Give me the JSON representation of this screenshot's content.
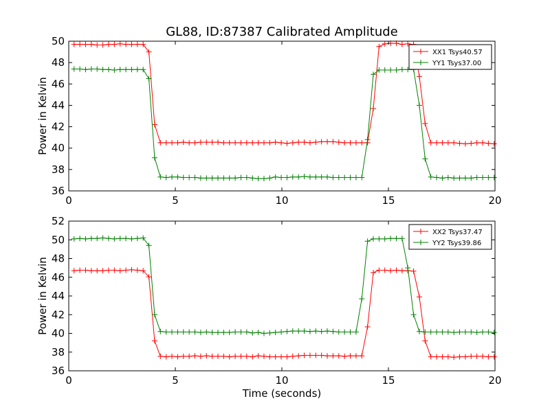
{
  "figure": {
    "title": "GL88, ID:87387 Calibrated Amplitude"
  },
  "chart_data": [
    {
      "type": "line",
      "title": "GL88, ID:87387 Calibrated Amplitude",
      "xlabel": "",
      "ylabel": "Power in Kelvin",
      "xlim": [
        0,
        20
      ],
      "ylim": [
        36,
        50
      ],
      "xticks": [
        0,
        5,
        10,
        15,
        20
      ],
      "yticks": [
        36,
        38,
        40,
        42,
        44,
        46,
        48,
        50
      ],
      "grid": false,
      "legend_position": "top-right",
      "x": [
        0.25,
        0.52,
        0.79,
        1.06,
        1.33,
        1.6,
        1.87,
        2.14,
        2.41,
        2.68,
        2.95,
        3.22,
        3.49,
        3.76,
        4.03,
        4.3,
        4.57,
        4.84,
        5.11,
        5.38,
        5.65,
        5.92,
        6.19,
        6.46,
        6.73,
        7.0,
        7.27,
        7.54,
        7.81,
        8.08,
        8.35,
        8.62,
        8.89,
        9.16,
        9.43,
        9.7,
        9.97,
        10.24,
        10.51,
        10.78,
        11.05,
        11.32,
        11.59,
        11.86,
        12.13,
        12.4,
        12.67,
        12.94,
        13.21,
        13.48,
        13.75,
        14.02,
        14.29,
        14.56,
        14.83,
        15.1,
        15.37,
        15.64,
        15.91,
        16.18,
        16.45,
        16.72,
        16.99,
        17.26,
        17.53,
        17.8,
        18.07,
        18.34,
        18.61,
        18.88,
        19.15,
        19.42,
        19.69,
        19.96
      ],
      "series": [
        {
          "name": "XX1 Tsys40.57",
          "color": "#ff0000",
          "values": [
            49.7,
            49.7,
            49.7,
            49.7,
            49.65,
            49.65,
            49.7,
            49.7,
            49.75,
            49.7,
            49.7,
            49.7,
            49.7,
            49.0,
            42.2,
            40.5,
            40.5,
            40.5,
            40.5,
            40.55,
            40.5,
            40.5,
            40.55,
            40.55,
            40.55,
            40.55,
            40.5,
            40.5,
            40.5,
            40.5,
            40.5,
            40.5,
            40.5,
            40.5,
            40.5,
            40.55,
            40.5,
            40.45,
            40.5,
            40.55,
            40.55,
            40.5,
            40.55,
            40.6,
            40.6,
            40.6,
            40.55,
            40.5,
            40.5,
            40.5,
            40.5,
            40.5,
            43.7,
            49.5,
            49.75,
            49.8,
            49.8,
            49.7,
            49.75,
            49.7,
            46.7,
            42.3,
            40.5,
            40.5,
            40.5,
            40.5,
            40.5,
            40.45,
            40.4,
            40.45,
            40.5,
            40.5,
            40.45,
            40.4
          ]
        },
        {
          "name": "YY1 Tsys37.00",
          "color": "#008000",
          "values": [
            47.4,
            47.4,
            47.35,
            47.4,
            47.4,
            47.35,
            47.35,
            47.3,
            47.35,
            47.35,
            47.35,
            47.35,
            47.35,
            46.5,
            39.1,
            37.3,
            37.25,
            37.3,
            37.3,
            37.25,
            37.25,
            37.25,
            37.2,
            37.2,
            37.2,
            37.2,
            37.2,
            37.2,
            37.2,
            37.25,
            37.25,
            37.2,
            37.15,
            37.15,
            37.2,
            37.3,
            37.25,
            37.25,
            37.3,
            37.3,
            37.35,
            37.3,
            37.3,
            37.3,
            37.3,
            37.25,
            37.25,
            37.25,
            37.25,
            37.25,
            37.25,
            40.8,
            46.9,
            47.3,
            47.3,
            47.3,
            47.3,
            47.35,
            47.35,
            47.35,
            44.0,
            39.0,
            37.3,
            37.25,
            37.2,
            37.25,
            37.2,
            37.2,
            37.2,
            37.2,
            37.25,
            37.25,
            37.25,
            37.25
          ]
        }
      ]
    },
    {
      "type": "line",
      "title": "",
      "xlabel": "Time (seconds)",
      "ylabel": "Power in Kelvin",
      "xlim": [
        0,
        20
      ],
      "ylim": [
        36,
        52
      ],
      "xticks": [
        0,
        5,
        10,
        15,
        20
      ],
      "yticks": [
        36,
        38,
        40,
        42,
        44,
        46,
        48,
        50,
        52
      ],
      "grid": false,
      "legend_position": "top-right",
      "x": [
        0.25,
        0.52,
        0.79,
        1.06,
        1.33,
        1.6,
        1.87,
        2.14,
        2.41,
        2.68,
        2.95,
        3.22,
        3.49,
        3.76,
        4.03,
        4.3,
        4.57,
        4.84,
        5.11,
        5.38,
        5.65,
        5.92,
        6.19,
        6.46,
        6.73,
        7.0,
        7.27,
        7.54,
        7.81,
        8.08,
        8.35,
        8.62,
        8.89,
        9.16,
        9.43,
        9.7,
        9.97,
        10.24,
        10.51,
        10.78,
        11.05,
        11.32,
        11.59,
        11.86,
        12.13,
        12.4,
        12.67,
        12.94,
        13.21,
        13.48,
        13.75,
        14.02,
        14.29,
        14.56,
        14.83,
        15.1,
        15.37,
        15.64,
        15.91,
        16.18,
        16.45,
        16.72,
        16.99,
        17.26,
        17.53,
        17.8,
        18.07,
        18.34,
        18.61,
        18.88,
        19.15,
        19.42,
        19.69,
        19.96
      ],
      "series": [
        {
          "name": "XX2 Tsys37.47",
          "color": "#ff0000",
          "values": [
            46.7,
            46.75,
            46.75,
            46.7,
            46.7,
            46.7,
            46.75,
            46.75,
            46.7,
            46.75,
            46.8,
            46.75,
            46.7,
            46.05,
            39.2,
            37.55,
            37.5,
            37.55,
            37.5,
            37.55,
            37.55,
            37.6,
            37.55,
            37.6,
            37.55,
            37.55,
            37.55,
            37.5,
            37.55,
            37.55,
            37.55,
            37.5,
            37.6,
            37.55,
            37.5,
            37.5,
            37.5,
            37.5,
            37.55,
            37.6,
            37.65,
            37.65,
            37.65,
            37.65,
            37.6,
            37.6,
            37.6,
            37.55,
            37.6,
            37.6,
            37.6,
            40.7,
            46.5,
            46.75,
            46.75,
            46.7,
            46.75,
            46.7,
            46.7,
            46.65,
            43.9,
            39.2,
            37.5,
            37.5,
            37.5,
            37.5,
            37.45,
            37.5,
            37.5,
            37.55,
            37.55,
            37.55,
            37.5,
            37.5
          ]
        },
        {
          "name": "YY2 Tsys39.86",
          "color": "#008000",
          "values": [
            50.1,
            50.15,
            50.1,
            50.15,
            50.15,
            50.2,
            50.15,
            50.1,
            50.15,
            50.15,
            50.1,
            50.15,
            50.2,
            49.4,
            42.0,
            40.2,
            40.15,
            40.15,
            40.15,
            40.15,
            40.15,
            40.15,
            40.1,
            40.15,
            40.1,
            40.1,
            40.1,
            40.1,
            40.15,
            40.15,
            40.15,
            40.05,
            40.1,
            40.0,
            40.05,
            40.1,
            40.15,
            40.2,
            40.25,
            40.25,
            40.25,
            40.2,
            40.25,
            40.2,
            40.25,
            40.2,
            40.15,
            40.15,
            40.15,
            40.15,
            43.7,
            49.85,
            50.1,
            50.1,
            50.1,
            50.15,
            50.15,
            50.15,
            47.0,
            42.0,
            40.2,
            40.15,
            40.15,
            40.15,
            40.15,
            40.15,
            40.1,
            40.15,
            40.15,
            40.15,
            40.1,
            40.15,
            40.15,
            40.1
          ]
        }
      ]
    }
  ]
}
